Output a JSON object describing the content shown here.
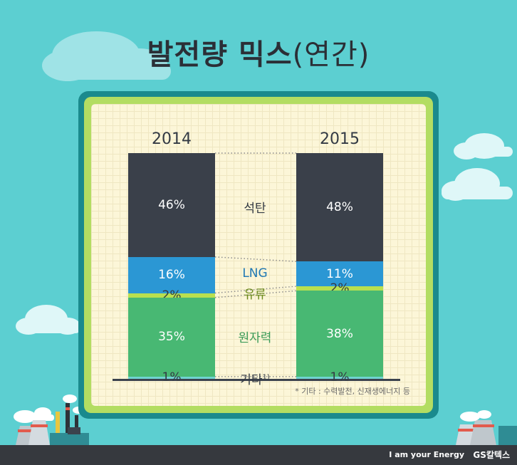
{
  "title": "발전량 믹스",
  "title_sub": "(연간)",
  "footnote": "* 기타 : 수력발전, 신재생에너지 등",
  "brand_tagline": "I am your Energy",
  "brand_logo": "GS칼텍스",
  "colors": {
    "background": "#5ccfd1",
    "coal": "#3a404a",
    "lng": "#2b97d4",
    "oil": "#b8e04f",
    "nuclear": "#48b873",
    "other": "#6fd3d0"
  },
  "chart_data": {
    "type": "bar",
    "stacked": true,
    "title": "발전량 믹스(연간)",
    "categories": [
      "2014",
      "2015"
    ],
    "series": [
      {
        "name": "석탄",
        "label": "석탄",
        "values": [
          46,
          48
        ],
        "value_labels": [
          "46%",
          "48%"
        ]
      },
      {
        "name": "LNG",
        "label": "LNG",
        "values": [
          16,
          11
        ],
        "value_labels": [
          "16%",
          "11%"
        ]
      },
      {
        "name": "유류",
        "label": "유류",
        "values": [
          2,
          2
        ],
        "value_labels": [
          "2%",
          "2%"
        ]
      },
      {
        "name": "원자력",
        "label": "원자력",
        "values": [
          35,
          38
        ],
        "value_labels": [
          "35%",
          "38%"
        ]
      },
      {
        "name": "기타",
        "label": "기타",
        "label_sup": "1)",
        "values": [
          1,
          1
        ],
        "value_labels": [
          "1%",
          "1%"
        ]
      }
    ],
    "ylim": [
      0,
      100
    ],
    "grid": false
  }
}
